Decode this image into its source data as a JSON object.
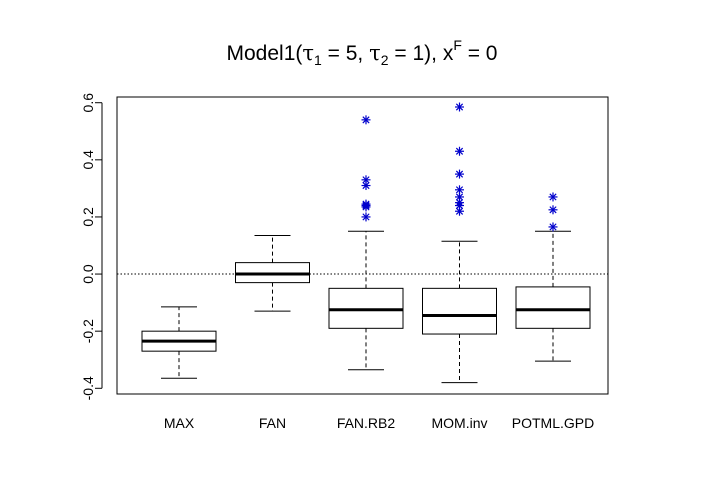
{
  "chart_data": {
    "type": "boxplot",
    "title": {
      "prefix": "Model1",
      "tau1_symbol": "τ",
      "tau1_sub": "1",
      "tau1_value": " = 5, ",
      "tau2_symbol": "τ",
      "tau2_sub": "2",
      "tau2_value": " = 1",
      "x_symbol": "x",
      "x_sup": "F",
      "x_value": " = 0"
    },
    "ylim": [
      -0.42,
      0.62
    ],
    "yticks": [
      -0.4,
      -0.2,
      0.0,
      0.2,
      0.4,
      0.6
    ],
    "ytick_labels": [
      "-0.4",
      "-0.2",
      "0.0",
      "0.2",
      "0.4",
      "0.6"
    ],
    "reference_line": 0.0,
    "outlier_color": "#0000cc",
    "outlier_marker": "asterisk",
    "boxes": [
      {
        "name": "MAX",
        "whisker_low": -0.365,
        "q1": -0.27,
        "median": -0.235,
        "q3": -0.2,
        "whisker_high": -0.115,
        "outliers": []
      },
      {
        "name": "FAN",
        "whisker_low": -0.13,
        "q1": -0.03,
        "median": 0.0,
        "q3": 0.04,
        "whisker_high": 0.135,
        "outliers": []
      },
      {
        "name": "FAN.RB2",
        "whisker_low": -0.335,
        "q1": -0.19,
        "median": -0.125,
        "q3": -0.05,
        "whisker_high": 0.15,
        "outliers": [
          0.54,
          0.33,
          0.31,
          0.245,
          0.24,
          0.235,
          0.2
        ]
      },
      {
        "name": "MOM.inv",
        "whisker_low": -0.38,
        "q1": -0.21,
        "median": -0.145,
        "q3": -0.05,
        "whisker_high": 0.115,
        "outliers": [
          0.585,
          0.43,
          0.35,
          0.295,
          0.27,
          0.25,
          0.24,
          0.22
        ]
      },
      {
        "name": "POTML.GPD",
        "whisker_low": -0.305,
        "q1": -0.19,
        "median": -0.125,
        "q3": -0.045,
        "whisker_high": 0.15,
        "outliers": [
          0.27,
          0.225,
          0.165
        ]
      }
    ]
  }
}
